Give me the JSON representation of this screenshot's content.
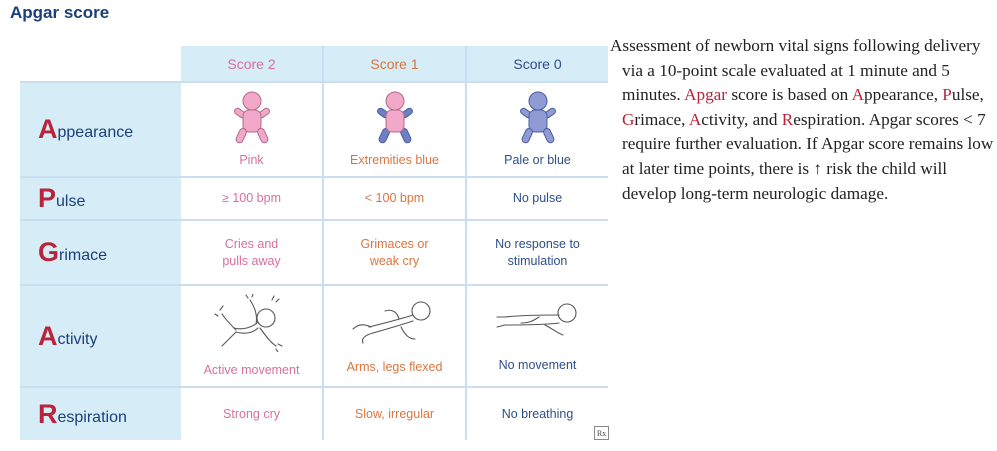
{
  "title": "Apgar score",
  "columns": [
    {
      "label": "Score 2",
      "color": "#d7709d"
    },
    {
      "label": "Score 1",
      "color": "#d9753f"
    },
    {
      "label": "Score 0",
      "color": "#2d4f89"
    }
  ],
  "rows": [
    {
      "initial": "A",
      "rest": "ppearance",
      "cells": [
        "Pink",
        "Extremities blue",
        "Pale or blue"
      ]
    },
    {
      "initial": "P",
      "rest": "ulse",
      "cells": [
        "≥ 100 bpm",
        "< 100 bpm",
        "No pulse"
      ]
    },
    {
      "initial": "G",
      "rest": "rimace",
      "cells": [
        [
          "Cries and",
          "pulls away"
        ],
        [
          "Grimaces or",
          "weak cry"
        ],
        [
          "No response to",
          "stimulation"
        ]
      ]
    },
    {
      "initial": "A",
      "rest": "ctivity",
      "cells": [
        "Active movement",
        "Arms, legs flexed",
        "No movement"
      ]
    },
    {
      "initial": "R",
      "rest": "espiration",
      "cells": [
        "Strong cry",
        "Slow, irregular",
        "No breathing"
      ]
    }
  ],
  "rx_badge": "Rx",
  "description": {
    "p1": "Assessment of newborn vital signs following delivery via a 10-point scale evaluated at 1 minute and 5 minutes. ",
    "apgar": "Apgar",
    "p2": " score is based on ",
    "a1": "A",
    "a1r": "ppearance, ",
    "p": "P",
    "pr": "ulse, ",
    "g": "G",
    "gr": "rimace, ",
    "a2": "A",
    "a2r": "ctivity, and ",
    "r": "R",
    "rr": "espiration. Apgar scores < 7 require further evaluation. If Apgar score remains low at later time points, there is ↑ risk the child will develop long-term neurologic damage."
  },
  "colors": {
    "pink_baby": "#f2a9c9",
    "mixed_body": "#f2a9c9",
    "blue_limb": "#6f7fc4",
    "pale_blue": "#8e9bd4",
    "header_bg": "#d6ecf7",
    "accent_red": "#b8243c"
  }
}
